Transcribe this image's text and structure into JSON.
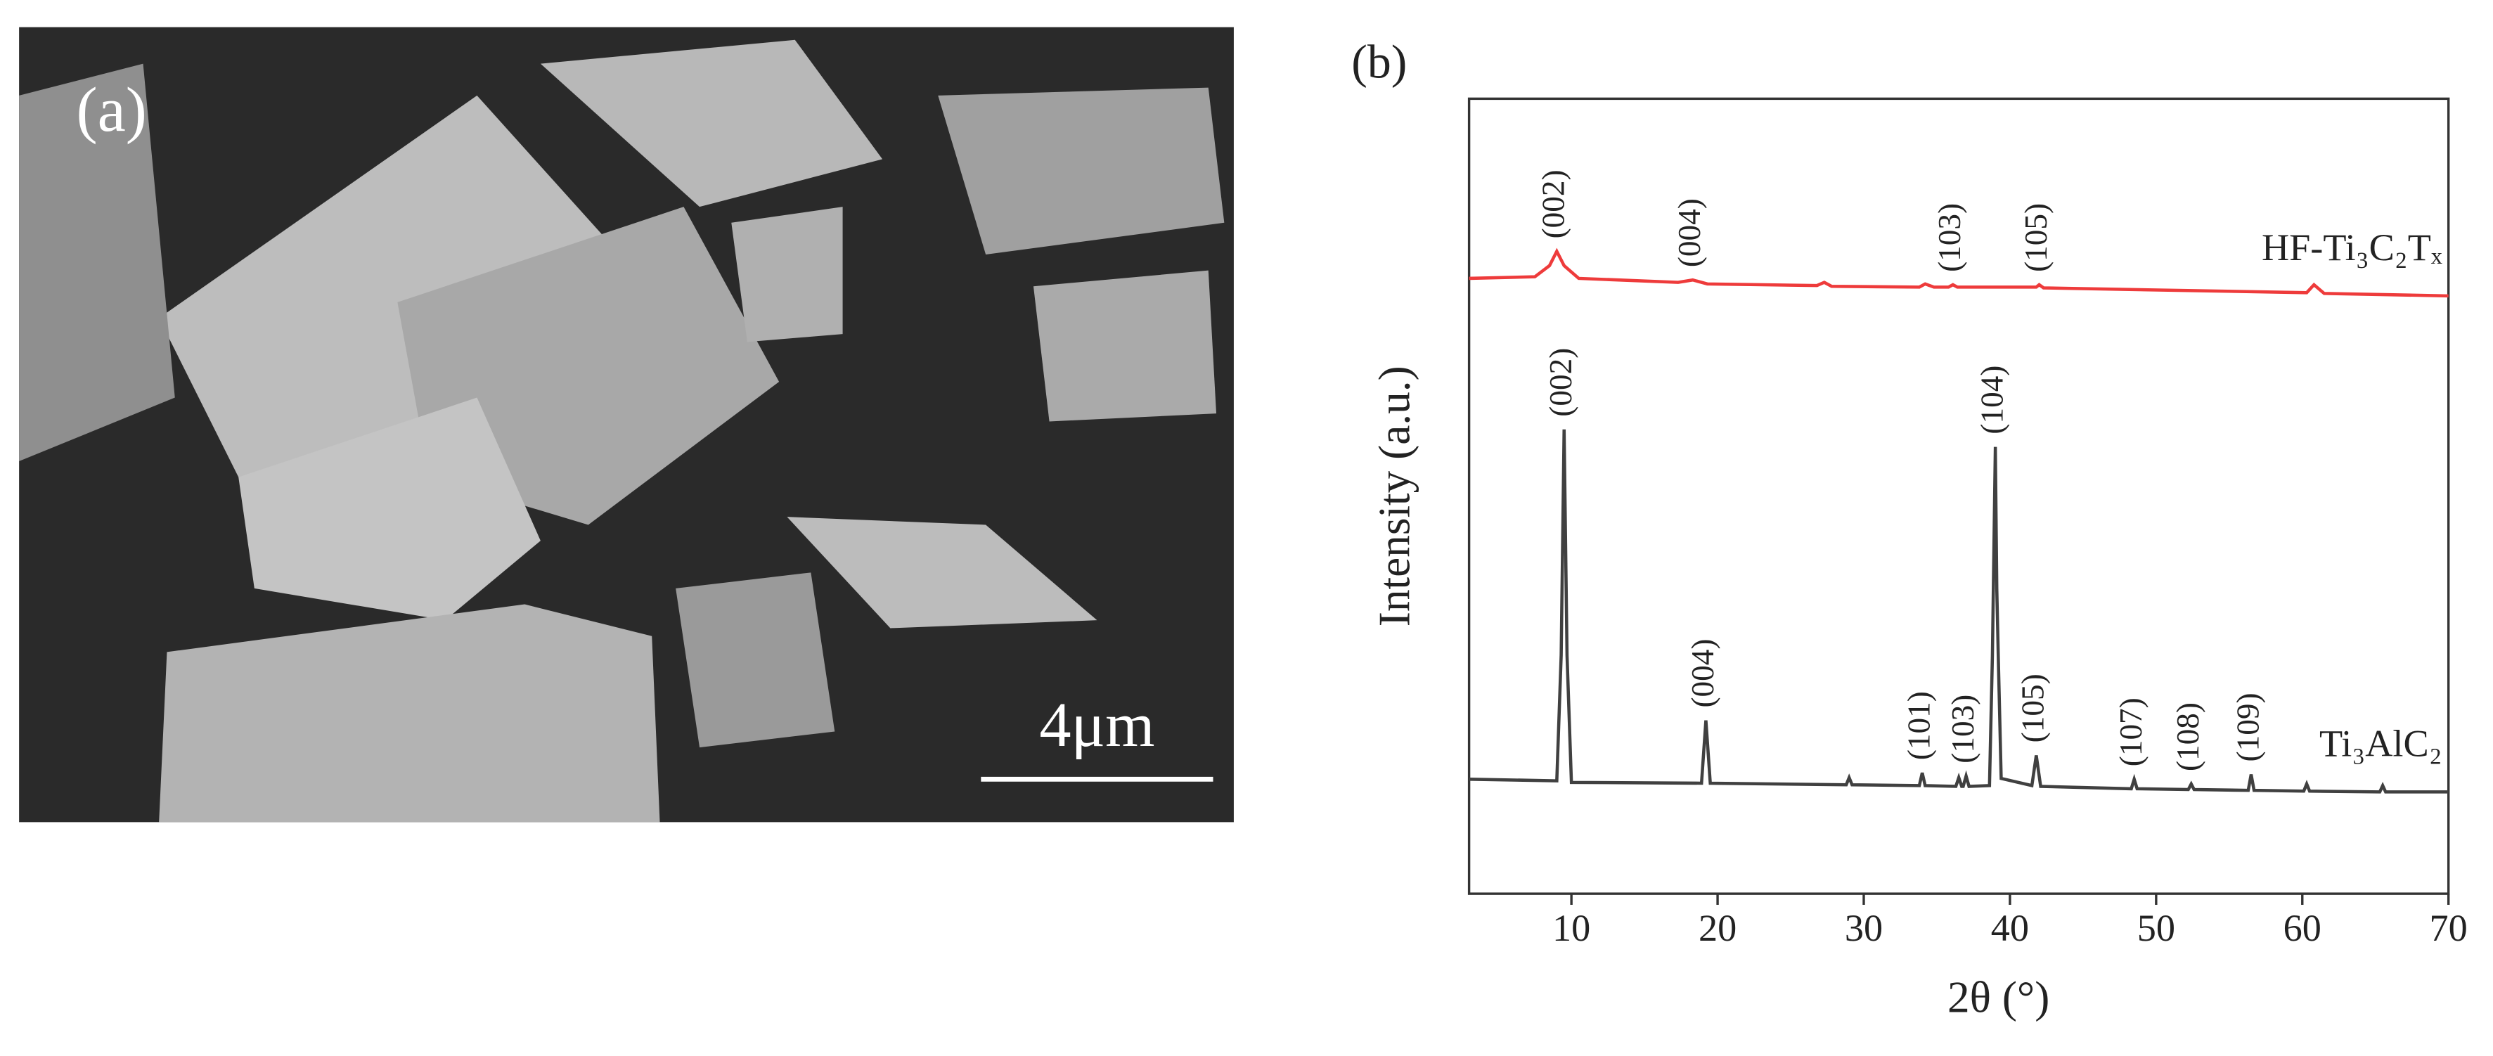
{
  "panel_a": {
    "label": "(a)",
    "scale_bar": "4μm"
  },
  "chart_data": {
    "type": "line",
    "panel_label": "(b)",
    "xlabel": "2θ (°)",
    "ylabel": "Intensity (a.u.)",
    "xlim": [
      3,
      70
    ],
    "xticks": [
      10,
      20,
      30,
      40,
      50,
      60,
      70
    ],
    "ylim": [
      0,
      100
    ],
    "series": [
      {
        "name": "HF-Ti₃C₂Tₓ",
        "color": "#ee3b3b",
        "x": [
          3,
          7.5,
          8.5,
          9,
          9.5,
          10.5,
          17.3,
          18.3,
          19.3,
          26.8,
          27.3,
          27.8,
          33.8,
          34.2,
          34.8,
          35.8,
          36.1,
          36.4,
          41.8,
          42,
          42.3,
          60.3,
          60.8,
          61.5,
          70
        ],
        "values": [
          77.4,
          77.6,
          79,
          80.8,
          79,
          77.4,
          76.9,
          77.2,
          76.7,
          76.5,
          76.9,
          76.4,
          76.3,
          76.7,
          76.3,
          76.3,
          76.6,
          76.3,
          76.3,
          76.6,
          76.2,
          75.6,
          76.6,
          75.5,
          75.2
        ],
        "peak_labels": [
          {
            "text": "(002)",
            "x": 9
          },
          {
            "text": "(004)",
            "x": 18.3
          },
          {
            "text": "(103)",
            "x": 36.1
          },
          {
            "text": "(105)",
            "x": 42
          }
        ]
      },
      {
        "name": "Ti₃AlC₂",
        "color": "#404040",
        "x": [
          3,
          9.0,
          9.3,
          9.5,
          9.7,
          10.0,
          18.9,
          19.2,
          19.5,
          28.8,
          29,
          29.2,
          33.8,
          34,
          34.2,
          36.3,
          36.5,
          36.7,
          36.8,
          37,
          37.2,
          38.6,
          38.8,
          39,
          39.1,
          39.2,
          39.4,
          41.5,
          41.8,
          42.1,
          48.3,
          48.5,
          48.7,
          52.2,
          52.4,
          52.6,
          56.3,
          56.5,
          56.7,
          60.1,
          60.3,
          60.5,
          65.3,
          65.5,
          65.7,
          70
        ],
        "values": [
          14.4,
          14.2,
          30,
          58.4,
          30,
          14.0,
          13.9,
          21.8,
          13.9,
          13.7,
          14.6,
          13.7,
          13.6,
          15.2,
          13.6,
          13.5,
          14.6,
          13.5,
          13.5,
          14.8,
          13.5,
          13.6,
          30,
          56.2,
          38.4,
          30,
          14.5,
          13.6,
          17.4,
          13.5,
          13.2,
          14.4,
          13.2,
          13.1,
          13.8,
          13.1,
          13.0,
          15.0,
          13.0,
          12.9,
          13.8,
          12.9,
          12.8,
          13.6,
          12.8,
          12.8
        ],
        "peak_labels": [
          {
            "text": "(002)",
            "x": 9.5
          },
          {
            "text": "(004)",
            "x": 19.2
          },
          {
            "text": "(101)",
            "x": 34
          },
          {
            "text": "(103)",
            "x": 37
          },
          {
            "text": "(104)",
            "x": 39
          },
          {
            "text": "(105)",
            "x": 41.8
          },
          {
            "text": "(107)",
            "x": 48.5
          },
          {
            "text": "(108)",
            "x": 52.4
          },
          {
            "text": "(109)",
            "x": 56.5
          }
        ]
      }
    ]
  }
}
